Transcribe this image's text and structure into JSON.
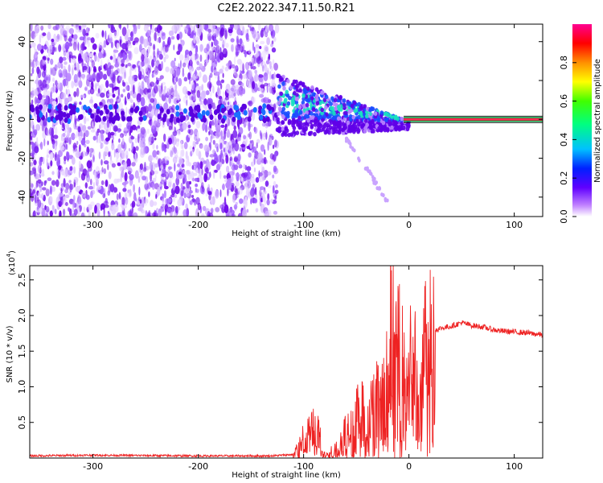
{
  "title": "C2E2.2022.347.11.50.R21",
  "chart_data": [
    {
      "type": "heatmap",
      "xlabel": "Height of straight line (km)",
      "ylabel": "Frequency (Hz)",
      "xlim": [
        -360,
        127
      ],
      "ylim": [
        -50,
        49
      ],
      "xticks": [
        -300,
        -200,
        -100,
        0,
        100
      ],
      "yticks": [
        -40,
        -20,
        0,
        20,
        40
      ],
      "colorbar": {
        "label": "Normalized spectral amplitude",
        "range": [
          0.0,
          1.0
        ],
        "ticks": [
          "0.0",
          "0.2",
          "0.4",
          "0.6",
          "0.8"
        ],
        "colormap": [
          "#ffffff",
          "#8800ff",
          "#0000ff",
          "#00e0ff",
          "#00ff00",
          "#ffff00",
          "#ff8800",
          "#ff0000",
          "#ff0088"
        ]
      },
      "regions": [
        {
          "x_range": [
            -360,
            -125
          ],
          "frequency_range": [
            -50,
            49
          ],
          "amplitude": 0.05
        },
        {
          "x_range": [
            -125,
            0
          ],
          "frequency_center": [
            10,
            0
          ],
          "amplitude": 0.35
        },
        {
          "x_range": [
            0,
            127
          ],
          "frequency": 0,
          "amplitude": 1.0
        }
      ]
    },
    {
      "type": "line",
      "xlabel": "Height of straight line (km)",
      "ylabel": "SNR (10 * v/v)",
      "y_scale_label": "(x10",
      "y_scale_exponent": "4",
      "xlim": [
        -360,
        127
      ],
      "ylim": [
        0,
        2.7
      ],
      "xticks": [
        -300,
        -200,
        -100,
        0,
        100
      ],
      "yticks": [
        0.5,
        1.0,
        1.5,
        2.0,
        2.5
      ],
      "series_color": "#ee2222",
      "series": [
        {
          "x": [
            -360,
            -300,
            -200,
            -130,
            -110,
            -105,
            -100,
            -95,
            -90,
            -85,
            -80,
            -75,
            -70,
            -65,
            -60,
            -55,
            -50,
            -45,
            -40,
            -35,
            -30,
            -25,
            -20,
            -17,
            -15,
            -12,
            -10,
            -5,
            0,
            5,
            10,
            13,
            15,
            20,
            25,
            30,
            40,
            50,
            60,
            70,
            80,
            90,
            100,
            110,
            120,
            127
          ],
          "y": [
            0.03,
            0.04,
            0.03,
            0.03,
            0.05,
            0.15,
            0.3,
            0.45,
            0.5,
            0.35,
            0.15,
            0.08,
            0.1,
            0.25,
            0.4,
            0.5,
            0.6,
            0.8,
            0.75,
            0.95,
            0.9,
            1.1,
            1.2,
            2.7,
            1.3,
            1.4,
            1.6,
            1.35,
            1.45,
            1.6,
            0.45,
            1.55,
            1.65,
            1.75,
            1.8,
            1.82,
            1.85,
            1.9,
            1.86,
            1.84,
            1.8,
            1.78,
            1.77,
            1.76,
            1.74,
            1.73
          ]
        }
      ]
    }
  ]
}
